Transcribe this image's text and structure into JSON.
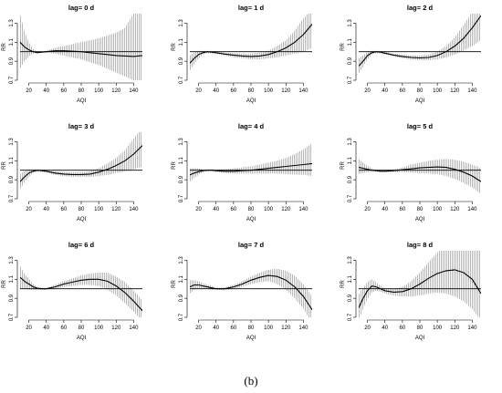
{
  "caption": "(b)",
  "chart_data": [
    {
      "type": "line",
      "title": "lag= 0 d",
      "xlabel": "AQI",
      "ylabel": "RR",
      "xlim": [
        10,
        150
      ],
      "ylim": [
        0.7,
        1.4
      ],
      "xticks": [
        20,
        40,
        60,
        80,
        100,
        120,
        140
      ],
      "yticks": [
        0.7,
        0.9,
        1.1,
        1.3
      ],
      "reference_y": 1.0,
      "x": [
        10,
        15,
        20,
        25,
        30,
        35,
        40,
        50,
        60,
        70,
        80,
        90,
        100,
        110,
        120,
        130,
        140,
        150
      ],
      "rr": [
        1.1,
        1.05,
        1.02,
        1.0,
        0.99,
        0.995,
        1.0,
        1.01,
        1.01,
        1.005,
        1.0,
        0.99,
        0.98,
        0.97,
        0.96,
        0.955,
        0.95,
        0.96
      ],
      "lower": [
        0.82,
        0.9,
        0.95,
        0.98,
        0.985,
        0.99,
        0.99,
        0.98,
        0.96,
        0.94,
        0.92,
        0.89,
        0.86,
        0.82,
        0.78,
        0.74,
        0.7,
        0.66
      ],
      "upper": [
        1.4,
        1.22,
        1.1,
        1.03,
        1.0,
        1.0,
        1.01,
        1.04,
        1.06,
        1.08,
        1.1,
        1.12,
        1.14,
        1.17,
        1.2,
        1.25,
        1.4,
        1.45
      ]
    },
    {
      "type": "line",
      "title": "lag= 1 d",
      "xlabel": "AQI",
      "ylabel": "RR",
      "xlim": [
        10,
        150
      ],
      "ylim": [
        0.7,
        1.4
      ],
      "xticks": [
        20,
        40,
        60,
        80,
        100,
        120,
        140
      ],
      "yticks": [
        0.7,
        0.9,
        1.1,
        1.3
      ],
      "reference_y": 1.0,
      "x": [
        10,
        15,
        20,
        25,
        30,
        35,
        40,
        50,
        60,
        70,
        80,
        90,
        100,
        110,
        120,
        130,
        140,
        150
      ],
      "rr": [
        0.88,
        0.93,
        0.97,
        0.99,
        1.0,
        0.995,
        0.99,
        0.975,
        0.965,
        0.955,
        0.95,
        0.955,
        0.97,
        1.0,
        1.04,
        1.1,
        1.18,
        1.29
      ],
      "lower": [
        0.8,
        0.87,
        0.93,
        0.97,
        0.985,
        0.98,
        0.975,
        0.96,
        0.94,
        0.93,
        0.92,
        0.92,
        0.93,
        0.94,
        0.96,
        0.98,
        1.0,
        1.04
      ],
      "upper": [
        0.96,
        0.99,
        1.01,
        1.01,
        1.01,
        1.01,
        1.005,
        0.99,
        0.985,
        0.98,
        0.98,
        0.99,
        1.01,
        1.06,
        1.12,
        1.22,
        1.35,
        1.45
      ]
    },
    {
      "type": "line",
      "title": "lag= 2 d",
      "xlabel": "AQI",
      "ylabel": "RR",
      "xlim": [
        10,
        150
      ],
      "ylim": [
        0.7,
        1.4
      ],
      "xticks": [
        20,
        40,
        60,
        80,
        100,
        120,
        140
      ],
      "yticks": [
        0.7,
        0.9,
        1.1,
        1.3
      ],
      "reference_y": 1.0,
      "x": [
        10,
        15,
        20,
        25,
        30,
        35,
        40,
        50,
        60,
        70,
        80,
        90,
        100,
        110,
        120,
        130,
        140,
        150
      ],
      "rr": [
        0.85,
        0.9,
        0.96,
        0.99,
        1.0,
        0.995,
        0.985,
        0.965,
        0.95,
        0.94,
        0.935,
        0.94,
        0.96,
        1.0,
        1.06,
        1.14,
        1.25,
        1.38
      ],
      "lower": [
        0.77,
        0.84,
        0.92,
        0.97,
        0.985,
        0.98,
        0.97,
        0.95,
        0.93,
        0.92,
        0.91,
        0.91,
        0.92,
        0.94,
        0.97,
        1.01,
        1.06,
        1.12
      ],
      "upper": [
        0.93,
        0.96,
        1.0,
        1.01,
        1.01,
        1.01,
        1.0,
        0.98,
        0.97,
        0.96,
        0.96,
        0.97,
        1.0,
        1.06,
        1.15,
        1.28,
        1.42,
        1.45
      ]
    },
    {
      "type": "line",
      "title": "lag= 3 d",
      "xlabel": "AQI",
      "ylabel": "RR",
      "xlim": [
        10,
        150
      ],
      "ylim": [
        0.7,
        1.4
      ],
      "xticks": [
        20,
        40,
        60,
        80,
        100,
        120,
        140
      ],
      "yticks": [
        0.7,
        0.9,
        1.1,
        1.3
      ],
      "reference_y": 1.0,
      "x": [
        10,
        15,
        20,
        25,
        30,
        35,
        40,
        50,
        60,
        70,
        80,
        90,
        100,
        110,
        120,
        130,
        140,
        150
      ],
      "rr": [
        0.88,
        0.93,
        0.97,
        0.99,
        1.0,
        0.995,
        0.99,
        0.97,
        0.96,
        0.955,
        0.955,
        0.96,
        0.98,
        1.01,
        1.05,
        1.1,
        1.17,
        1.26
      ],
      "lower": [
        0.8,
        0.87,
        0.93,
        0.97,
        0.985,
        0.98,
        0.975,
        0.95,
        0.94,
        0.93,
        0.93,
        0.93,
        0.94,
        0.95,
        0.97,
        0.99,
        1.01,
        1.04
      ],
      "upper": [
        0.96,
        0.99,
        1.01,
        1.01,
        1.01,
        1.01,
        1.005,
        0.99,
        0.98,
        0.98,
        0.98,
        0.99,
        1.02,
        1.07,
        1.13,
        1.21,
        1.33,
        1.45
      ]
    },
    {
      "type": "line",
      "title": "lag= 4 d",
      "xlabel": "AQI",
      "ylabel": "RR",
      "xlim": [
        10,
        150
      ],
      "ylim": [
        0.7,
        1.4
      ],
      "xticks": [
        20,
        40,
        60,
        80,
        100,
        120,
        140
      ],
      "yticks": [
        0.7,
        0.9,
        1.1,
        1.3
      ],
      "reference_y": 1.0,
      "x": [
        10,
        15,
        20,
        25,
        30,
        35,
        40,
        50,
        60,
        70,
        80,
        90,
        100,
        110,
        120,
        130,
        140,
        150
      ],
      "rr": [
        0.95,
        0.97,
        0.985,
        0.995,
        1.0,
        1.0,
        0.995,
        0.99,
        0.99,
        0.995,
        1.0,
        1.01,
        1.02,
        1.03,
        1.04,
        1.05,
        1.06,
        1.07
      ],
      "lower": [
        0.88,
        0.92,
        0.95,
        0.98,
        0.99,
        0.99,
        0.98,
        0.97,
        0.965,
        0.965,
        0.965,
        0.965,
        0.965,
        0.965,
        0.96,
        0.955,
        0.95,
        0.94
      ],
      "upper": [
        1.02,
        1.02,
        1.02,
        1.01,
        1.01,
        1.01,
        1.01,
        1.01,
        1.02,
        1.03,
        1.04,
        1.06,
        1.08,
        1.1,
        1.13,
        1.17,
        1.22,
        1.28
      ]
    },
    {
      "type": "line",
      "title": "lag= 5 d",
      "xlabel": "AQI",
      "ylabel": "RR",
      "xlim": [
        10,
        150
      ],
      "ylim": [
        0.7,
        1.4
      ],
      "xticks": [
        20,
        40,
        60,
        80,
        100,
        120,
        140
      ],
      "yticks": [
        0.7,
        0.9,
        1.1,
        1.3
      ],
      "reference_y": 1.0,
      "x": [
        10,
        15,
        20,
        25,
        30,
        35,
        40,
        50,
        60,
        70,
        80,
        90,
        100,
        110,
        120,
        130,
        140,
        150
      ],
      "rr": [
        1.03,
        1.02,
        1.01,
        1.0,
        0.995,
        0.99,
        0.99,
        0.995,
        1.005,
        1.015,
        1.025,
        1.03,
        1.035,
        1.03,
        1.01,
        0.98,
        0.94,
        0.88
      ],
      "lower": [
        0.96,
        0.97,
        0.98,
        0.985,
        0.985,
        0.98,
        0.98,
        0.98,
        0.98,
        0.975,
        0.97,
        0.965,
        0.96,
        0.94,
        0.91,
        0.87,
        0.82,
        0.75
      ],
      "upper": [
        1.12,
        1.08,
        1.05,
        1.02,
        1.005,
        1.0,
        1.0,
        1.01,
        1.03,
        1.06,
        1.08,
        1.1,
        1.11,
        1.12,
        1.11,
        1.09,
        1.06,
        1.02
      ]
    },
    {
      "type": "line",
      "title": "lag= 6 d",
      "xlabel": "AQI",
      "ylabel": "RR",
      "xlim": [
        10,
        150
      ],
      "ylim": [
        0.7,
        1.4
      ],
      "xticks": [
        20,
        40,
        60,
        80,
        100,
        120,
        140
      ],
      "yticks": [
        0.7,
        0.9,
        1.1,
        1.3
      ],
      "reference_y": 1.0,
      "x": [
        10,
        15,
        20,
        25,
        30,
        35,
        40,
        50,
        60,
        70,
        80,
        90,
        100,
        110,
        120,
        130,
        140,
        150
      ],
      "rr": [
        1.12,
        1.08,
        1.05,
        1.02,
        1.005,
        1.0,
        1.0,
        1.02,
        1.05,
        1.07,
        1.09,
        1.1,
        1.1,
        1.08,
        1.03,
        0.96,
        0.87,
        0.77
      ],
      "lower": [
        1.0,
        1.0,
        0.99,
        0.99,
        0.99,
        0.99,
        0.99,
        1.0,
        1.02,
        1.03,
        1.04,
        1.04,
        1.03,
        0.99,
        0.93,
        0.85,
        0.76,
        0.66
      ],
      "upper": [
        1.24,
        1.16,
        1.11,
        1.05,
        1.02,
        1.01,
        1.01,
        1.04,
        1.08,
        1.11,
        1.14,
        1.16,
        1.17,
        1.17,
        1.13,
        1.07,
        0.98,
        0.88
      ]
    },
    {
      "type": "line",
      "title": "lag= 7 d",
      "xlabel": "AQI",
      "ylabel": "RR",
      "xlim": [
        10,
        150
      ],
      "ylim": [
        0.7,
        1.4
      ],
      "xticks": [
        20,
        40,
        60,
        80,
        100,
        120,
        140
      ],
      "yticks": [
        0.7,
        0.9,
        1.1,
        1.3
      ],
      "reference_y": 1.0,
      "x": [
        10,
        15,
        20,
        25,
        30,
        35,
        40,
        50,
        60,
        70,
        80,
        90,
        100,
        110,
        120,
        130,
        140,
        150
      ],
      "rr": [
        1.02,
        1.04,
        1.04,
        1.03,
        1.02,
        1.01,
        1.0,
        1.0,
        1.02,
        1.05,
        1.09,
        1.12,
        1.14,
        1.13,
        1.09,
        1.02,
        0.92,
        0.78
      ],
      "lower": [
        0.95,
        0.99,
        1.0,
        1.0,
        1.0,
        0.99,
        0.99,
        0.985,
        1.0,
        1.02,
        1.05,
        1.07,
        1.08,
        1.05,
        0.99,
        0.9,
        0.79,
        0.64
      ],
      "upper": [
        1.09,
        1.09,
        1.08,
        1.06,
        1.04,
        1.03,
        1.01,
        1.015,
        1.04,
        1.08,
        1.13,
        1.17,
        1.2,
        1.21,
        1.19,
        1.14,
        1.05,
        0.92
      ]
    },
    {
      "type": "line",
      "title": "lag= 8 d",
      "xlabel": "AQI",
      "ylabel": "RR",
      "xlim": [
        10,
        150
      ],
      "ylim": [
        0.7,
        1.4
      ],
      "xticks": [
        20,
        40,
        60,
        80,
        100,
        120,
        140
      ],
      "yticks": [
        0.7,
        0.9,
        1.1,
        1.3
      ],
      "reference_y": 1.0,
      "x": [
        10,
        15,
        20,
        25,
        30,
        35,
        40,
        50,
        60,
        70,
        80,
        90,
        100,
        110,
        120,
        130,
        140,
        150
      ],
      "rr": [
        0.8,
        0.9,
        0.98,
        1.03,
        1.02,
        1.0,
        0.98,
        0.965,
        0.97,
        1.0,
        1.05,
        1.11,
        1.16,
        1.19,
        1.2,
        1.17,
        1.1,
        0.95
      ],
      "lower": [
        0.66,
        0.79,
        0.89,
        0.96,
        0.98,
        0.97,
        0.95,
        0.93,
        0.92,
        0.92,
        0.93,
        0.95,
        0.96,
        0.95,
        0.92,
        0.87,
        0.79,
        0.66
      ],
      "upper": [
        0.94,
        1.01,
        1.07,
        1.1,
        1.07,
        1.03,
        1.01,
        1.0,
        1.02,
        1.08,
        1.17,
        1.28,
        1.38,
        1.45,
        1.45,
        1.45,
        1.45,
        1.45
      ]
    }
  ]
}
